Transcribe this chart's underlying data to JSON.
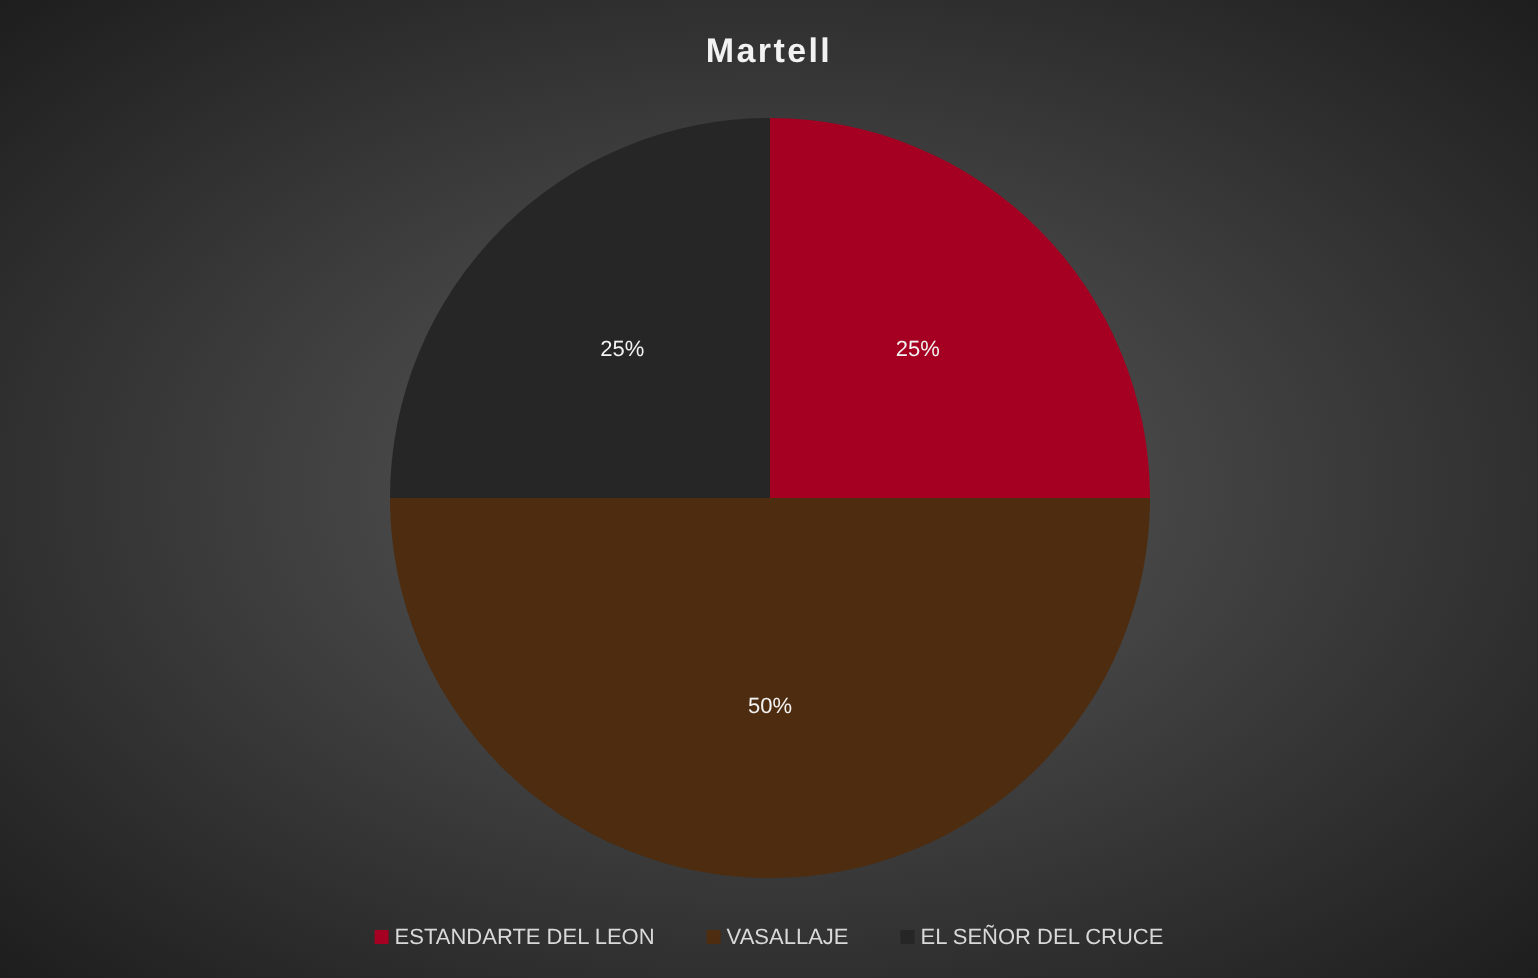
{
  "chart_data": {
    "type": "pie",
    "title": "Martell",
    "categories": [
      "ESTANDARTE DEL LEON",
      "VASALLAJE",
      "EL SEÑOR DEL CRUCE"
    ],
    "values": [
      25,
      50,
      25
    ],
    "colors": [
      "#a50021",
      "#4e2c0f",
      "#262626"
    ],
    "value_labels": [
      "25%",
      "50%",
      "25%"
    ],
    "legend": "bottom"
  }
}
